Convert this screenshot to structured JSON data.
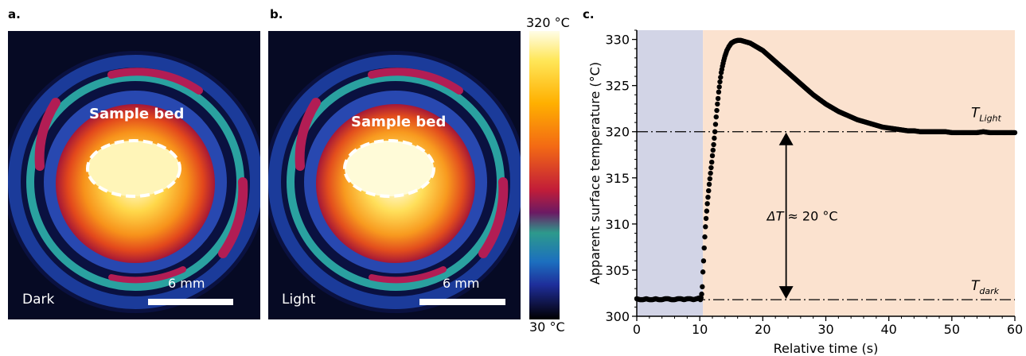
{
  "panels": {
    "a": {
      "letter": "a.",
      "condition": "Dark",
      "bed_label": "Sample bed",
      "scale_label": "6 mm"
    },
    "b": {
      "letter": "b.",
      "condition": "Light",
      "bed_label": "Sample bed",
      "scale_label": "6 mm"
    },
    "c": {
      "letter": "c."
    }
  },
  "colorbar": {
    "max_label": "320 °C",
    "min_label": "30 °C"
  },
  "chart_data": {
    "type": "scatter",
    "xlabel": "Relative time (s)",
    "ylabel": "Apparent surface temperature (°C)",
    "xlim": [
      0,
      60
    ],
    "ylim": [
      300,
      331
    ],
    "xticks": [
      0,
      10,
      20,
      30,
      40,
      50,
      60
    ],
    "yticks": [
      300,
      305,
      310,
      315,
      320,
      325,
      330
    ],
    "dark_region_end": 10.5,
    "background_colors": {
      "dark": "#d2d4e6",
      "light": "#fbe2cf"
    },
    "reference_lines": [
      {
        "label_main": "T",
        "label_sub": "Light",
        "y": 320
      },
      {
        "label_main": "T",
        "label_sub": "dark",
        "y": 301.8
      }
    ],
    "annotation": {
      "label_main": "ΔT",
      "label_rest": " ≈ 20 °C",
      "x": 23.7,
      "y_from": 301.8,
      "y_to": 320
    },
    "series": [
      {
        "x": [
          0,
          0.5,
          1,
          1.5,
          2,
          2.5,
          3,
          3.5,
          4,
          4.5,
          5,
          5.5,
          6,
          6.5,
          7,
          7.5,
          8,
          8.5,
          9,
          9.5,
          10,
          10.1,
          10.2,
          10.3,
          10.4,
          10.5,
          10.6,
          10.7,
          10.8,
          10.9,
          11,
          11.1,
          11.2,
          11.3,
          11.4,
          11.5,
          11.6,
          11.7,
          11.8,
          11.9,
          12,
          12.1,
          12.2,
          12.3,
          12.4,
          12.5,
          12.6,
          12.7,
          12.8,
          12.9,
          13,
          13.2,
          13.4,
          13.6,
          13.8,
          14,
          14.3,
          14.6,
          15,
          15.5,
          16,
          16.5,
          17,
          17.5,
          18,
          18.5,
          19,
          19.5,
          20,
          21,
          22,
          23,
          24,
          25,
          26,
          27,
          28,
          29,
          30,
          31,
          32,
          33,
          34,
          35,
          36,
          37,
          38,
          39,
          40,
          41,
          42,
          43,
          44,
          45,
          46,
          47,
          48,
          49,
          50,
          51,
          52,
          53,
          54,
          55,
          56,
          57,
          58,
          59,
          60
        ],
        "y": [
          301.9,
          301.8,
          301.8,
          301.9,
          301.8,
          301.8,
          301.9,
          301.8,
          301.8,
          301.9,
          301.9,
          301.8,
          301.8,
          301.9,
          301.9,
          301.8,
          301.9,
          301.9,
          301.8,
          301.9,
          302.0,
          301.8,
          302.0,
          302.4,
          303.2,
          304.8,
          306.0,
          307.4,
          308.6,
          309.7,
          310.6,
          311.4,
          312.2,
          312.9,
          313.6,
          314.3,
          314.9,
          315.5,
          316.1,
          316.7,
          317.4,
          318.0,
          318.6,
          319.3,
          320.0,
          320.8,
          321.6,
          322.3,
          323.0,
          323.6,
          324.3,
          325.4,
          326.4,
          327.1,
          327.7,
          328.2,
          328.8,
          329.2,
          329.6,
          329.8,
          329.9,
          329.9,
          329.8,
          329.7,
          329.6,
          329.4,
          329.2,
          329.0,
          328.8,
          328.2,
          327.6,
          327.0,
          326.4,
          325.8,
          325.2,
          324.6,
          324.0,
          323.5,
          323.0,
          322.6,
          322.2,
          321.9,
          321.6,
          321.3,
          321.1,
          320.9,
          320.7,
          320.5,
          320.4,
          320.3,
          320.2,
          320.1,
          320.1,
          320.0,
          320.0,
          320.0,
          320.0,
          320.0,
          319.9,
          319.9,
          319.9,
          319.9,
          319.9,
          320.0,
          319.9,
          319.9,
          319.9,
          319.9,
          319.9
        ]
      }
    ]
  }
}
